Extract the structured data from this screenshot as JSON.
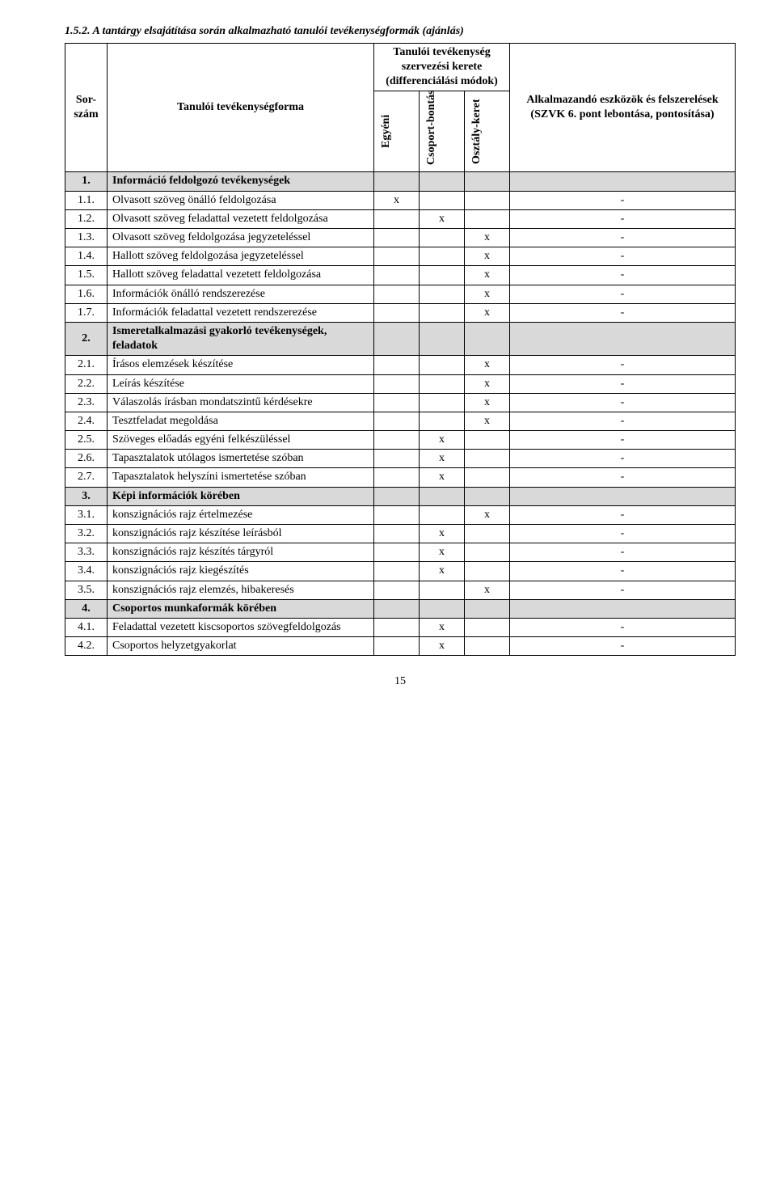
{
  "heading_number": "1.5.2.",
  "heading_text": "A tantárgy elsajátítása során alkalmazható tanulói tevékenységformák (ajánlás)",
  "header": {
    "sor": "Sor-szám",
    "forma": "Tanulói tevékenységforma",
    "kerete_top": "Tanulói tevékenység szervezési kerete (differenciálási módok)",
    "egyeni": "Egyéni",
    "csoport": "Csoport-bontás",
    "osztaly": "Osztály-keret",
    "eszkoz": "Alkalmazandó eszközök és felszerelések (SZVK 6. pont lebontása, pontosítása)"
  },
  "colors": {
    "grey": "#d9d9d9",
    "border": "#000000",
    "text": "#000000",
    "bg": "#ffffff"
  },
  "rows": [
    {
      "n": "1.",
      "t": "Információ feldolgozó tevékenységek",
      "g": true
    },
    {
      "n": "1.1.",
      "t": "Olvasott szöveg önálló feldolgozása",
      "e": "x",
      "d": "-"
    },
    {
      "n": "1.2.",
      "t": "Olvasott szöveg feladattal vezetett feldolgozása",
      "c": "x",
      "d": "-"
    },
    {
      "n": "1.3.",
      "t": "Olvasott szöveg feldolgozása jegyzeteléssel",
      "o": "x",
      "d": "-"
    },
    {
      "n": "1.4.",
      "t": "Hallott szöveg feldolgozása jegyzeteléssel",
      "o": "x",
      "d": "-"
    },
    {
      "n": "1.5.",
      "t": "Hallott szöveg feladattal vezetett feldolgozása",
      "o": "x",
      "d": "-"
    },
    {
      "n": "1.6.",
      "t": "Információk önálló rendszerezése",
      "o": "x",
      "d": "-"
    },
    {
      "n": "1.7.",
      "t": "Információk feladattal vezetett rendszerezése",
      "o": "x",
      "d": "-"
    },
    {
      "n": "2.",
      "t": "Ismeretalkalmazási gyakorló tevékenységek, feladatok",
      "g": true
    },
    {
      "n": "2.1.",
      "t": "Írásos elemzések készítése",
      "o": "x",
      "d": "-"
    },
    {
      "n": "2.2.",
      "t": "Leírás készítése",
      "o": "x",
      "d": "-"
    },
    {
      "n": "2.3.",
      "t": "Válaszolás írásban mondatszintű kérdésekre",
      "o": "x",
      "d": "-"
    },
    {
      "n": "2.4.",
      "t": "Tesztfeladat megoldása",
      "o": "x",
      "d": "-"
    },
    {
      "n": "2.5.",
      "t": "Szöveges előadás egyéni felkészüléssel",
      "c": "x",
      "d": "-"
    },
    {
      "n": "2.6.",
      "t": "Tapasztalatok utólagos ismertetése szóban",
      "c": "x",
      "d": "-"
    },
    {
      "n": "2.7.",
      "t": "Tapasztalatok helyszíni ismertetése szóban",
      "c": "x",
      "d": "-"
    },
    {
      "n": "3.",
      "t": "Képi információk körében",
      "g": true
    },
    {
      "n": "3.1.",
      "t": "konszignációs rajz értelmezése",
      "o": "x",
      "d": "-"
    },
    {
      "n": "3.2.",
      "t": "konszignációs rajz készítése leírásból",
      "c": "x",
      "d": "-"
    },
    {
      "n": "3.3.",
      "t": "konszignációs rajz készítés tárgyról",
      "c": "x",
      "d": "-"
    },
    {
      "n": "3.4.",
      "t": "konszignációs rajz kiegészítés",
      "c": "x",
      "d": "-"
    },
    {
      "n": "3.5.",
      "t": "konszignációs rajz elemzés, hibakeresés",
      "o": "x",
      "d": "-"
    },
    {
      "n": "4.",
      "t": "Csoportos munkaformák körében",
      "g": true
    },
    {
      "n": "4.1.",
      "t": "Feladattal vezetett kiscsoportos szövegfeldolgozás",
      "c": "x",
      "d": "-"
    },
    {
      "n": "4.2.",
      "t": "Csoportos helyzetgyakorlat",
      "c": "x",
      "d": "-"
    }
  ],
  "page": "15"
}
